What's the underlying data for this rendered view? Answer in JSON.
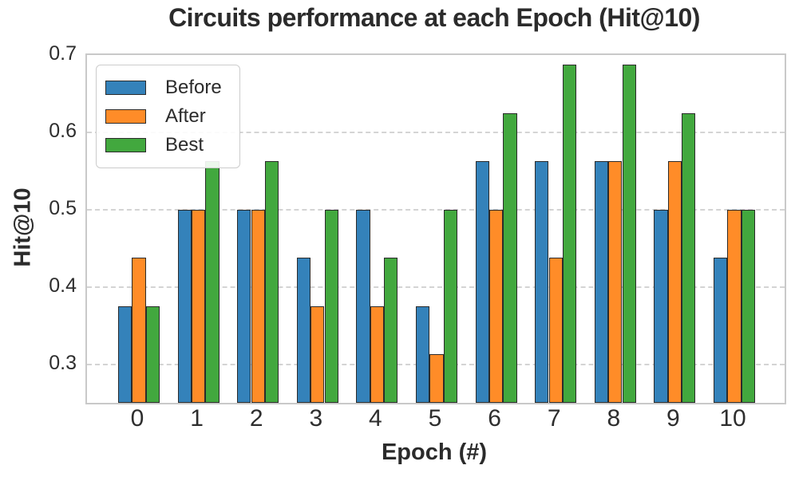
{
  "chart_data": {
    "type": "bar",
    "title": "Circuits performance at each Epoch (Hit@10)",
    "xlabel": "Epoch (#)",
    "ylabel": "Hit@10",
    "categories": [
      "0",
      "1",
      "2",
      "3",
      "4",
      "5",
      "6",
      "7",
      "8",
      "9",
      "10"
    ],
    "series": [
      {
        "name": "Before",
        "color": "#3482ba",
        "values": [
          0.375,
          0.5,
          0.5,
          0.4375,
          0.5,
          0.375,
          0.5625,
          0.5625,
          0.5625,
          0.5,
          0.4375
        ]
      },
      {
        "name": "After",
        "color": "#ff8c28",
        "values": [
          0.4375,
          0.5,
          0.5,
          0.375,
          0.375,
          0.3125,
          0.5,
          0.4375,
          0.5625,
          0.5625,
          0.5
        ]
      },
      {
        "name": "Best",
        "color": "#42a83e",
        "values": [
          0.375,
          0.5625,
          0.5625,
          0.5,
          0.4375,
          0.5,
          0.625,
          0.6875,
          0.6875,
          0.625,
          0.5
        ]
      }
    ],
    "ylim": [
      0.25,
      0.7
    ],
    "yticks": [
      0.3,
      0.4,
      0.5,
      0.6,
      0.7
    ],
    "ytick_labels": [
      "0.3",
      "0.4",
      "0.5",
      "0.6",
      "0.7"
    ],
    "grid": "horizontal-dashed",
    "legend_position": "upper-left",
    "bar_edge_color": "#2b2b2b",
    "grid_color": "#d4d4d4",
    "spine_color": "#c9c9c9",
    "text_color": "#2b2b2b"
  }
}
